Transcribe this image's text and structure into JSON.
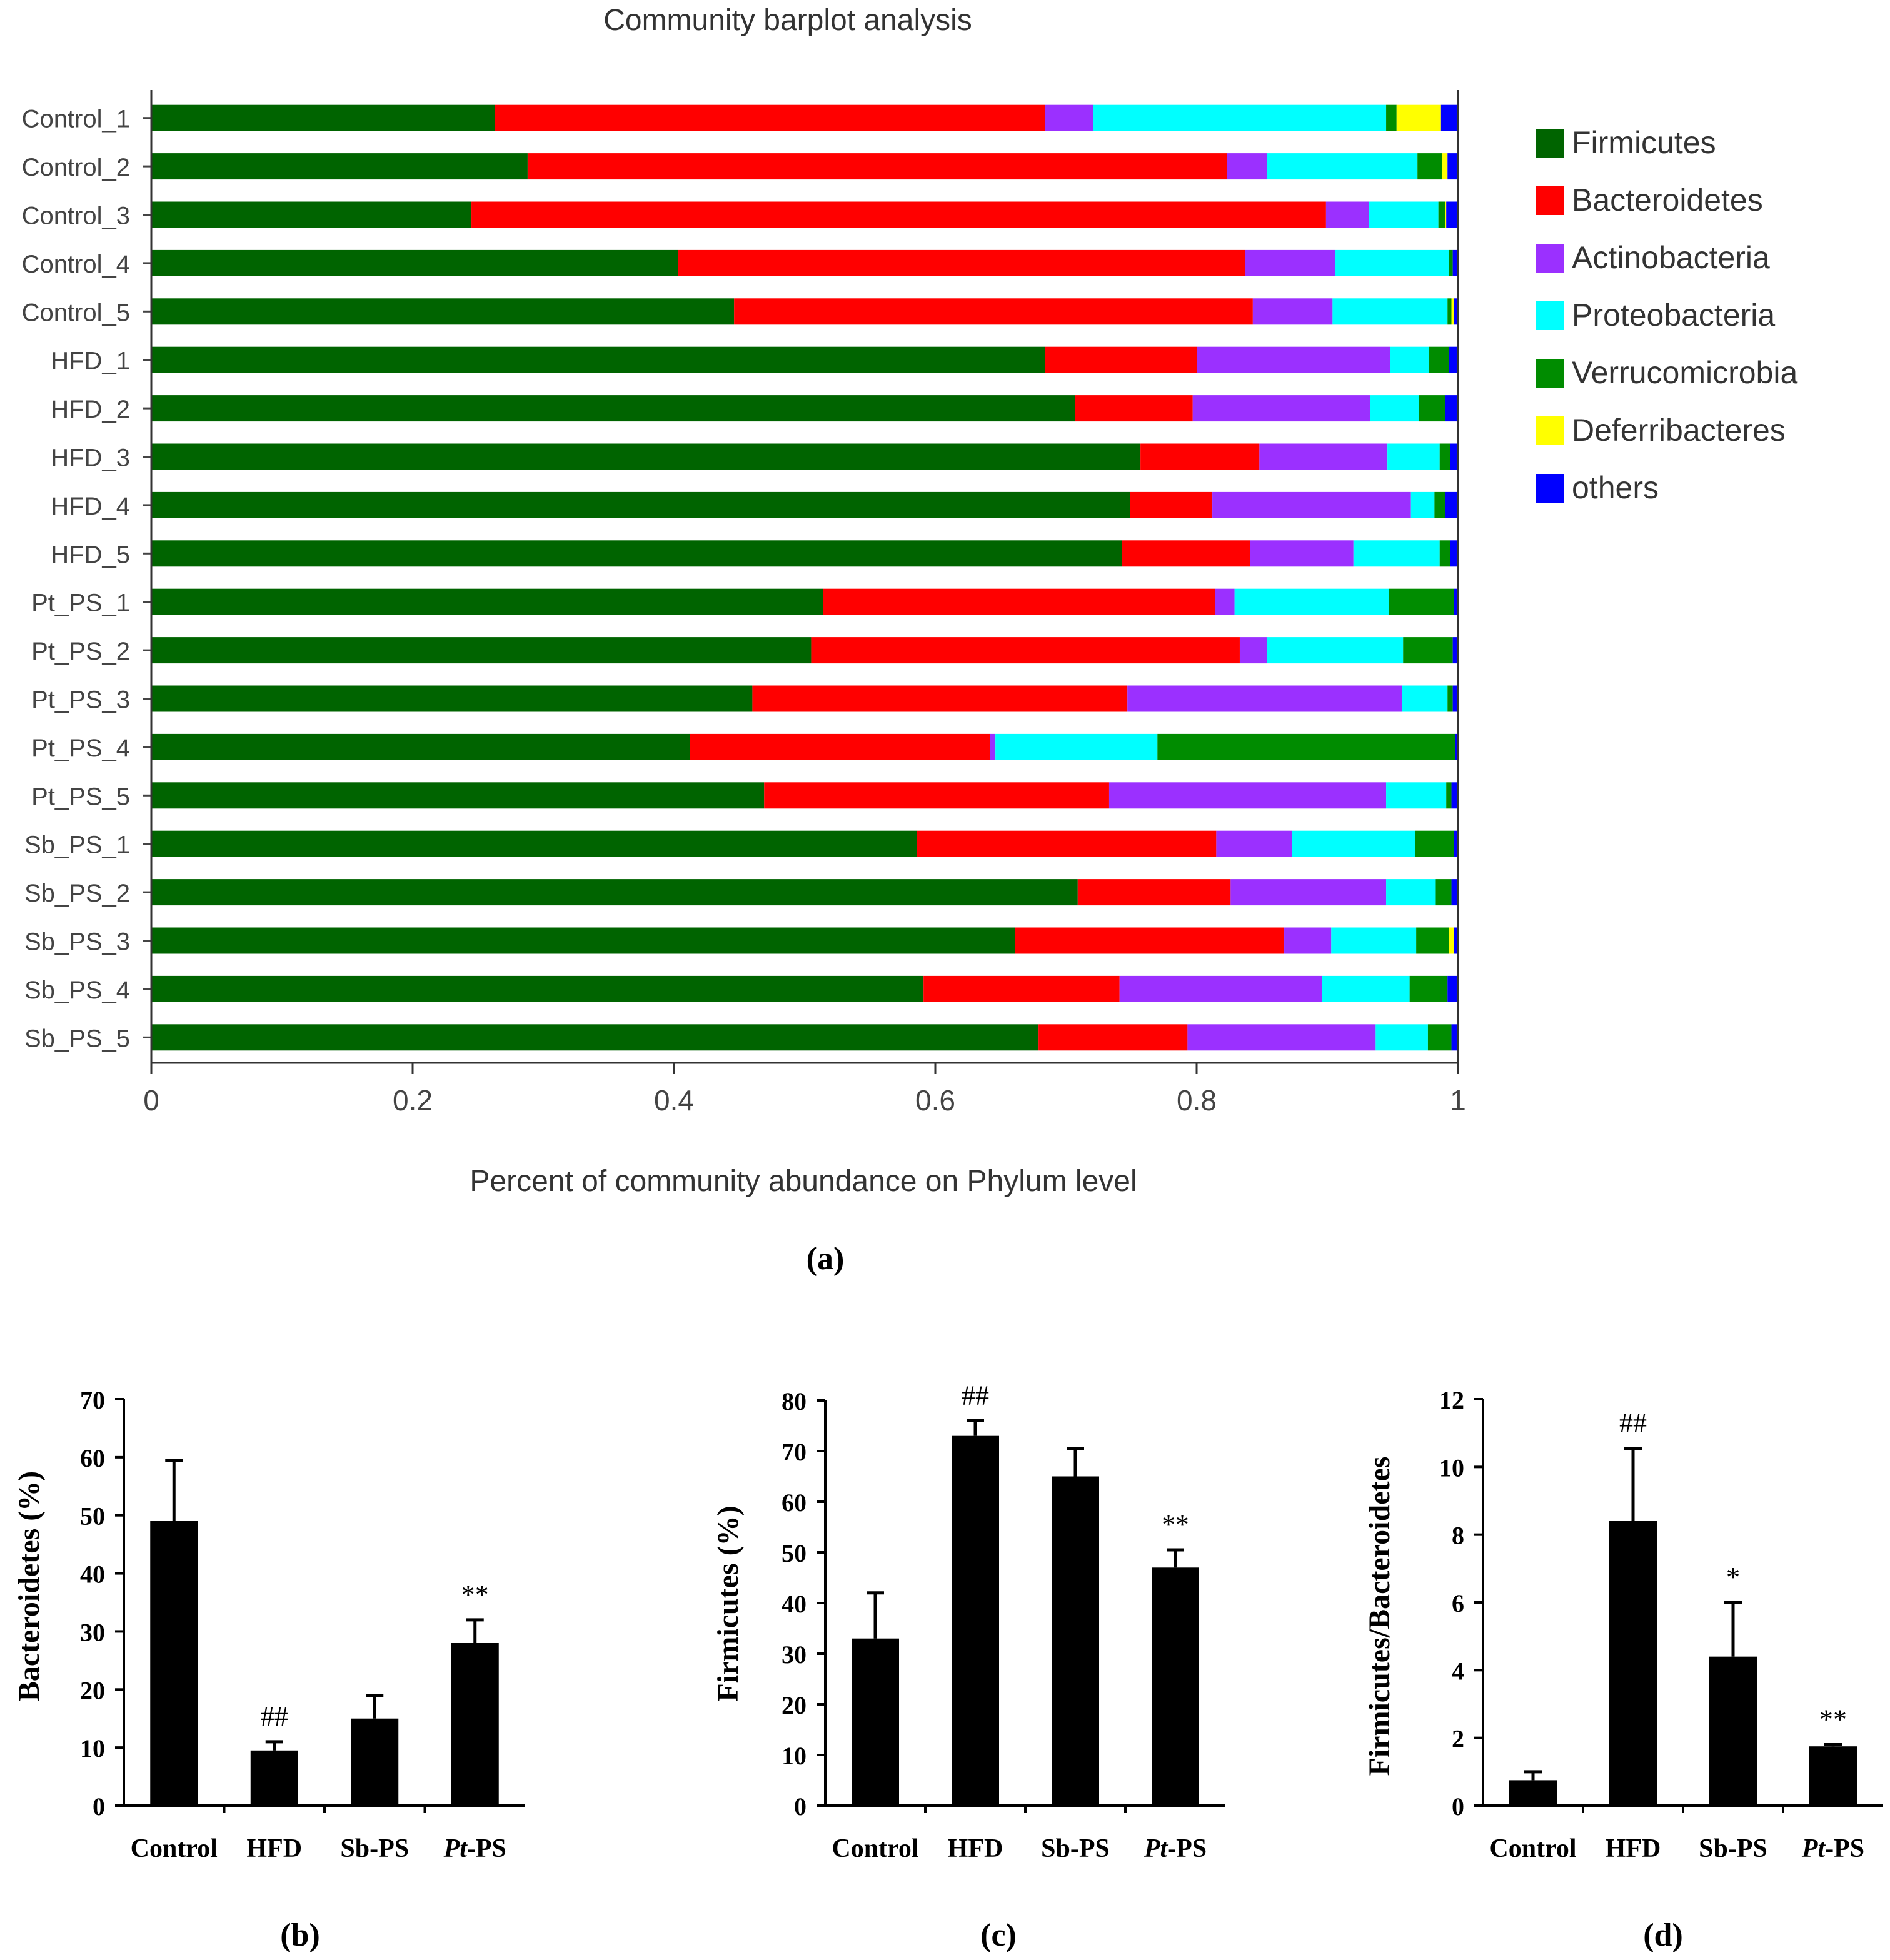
{
  "chart_data": [
    {
      "type": "bar",
      "orientation": "horizontal",
      "stacked": true,
      "panel_label": "(a)",
      "title": "Community barplot analysis",
      "xlabel": "Percent of community abundance on Phylum level",
      "ylabel": "",
      "xlim": [
        0,
        1
      ],
      "xticks": [
        0,
        0.2,
        0.4,
        0.6,
        0.8,
        1
      ],
      "xtick_labels": [
        "0",
        "0.2",
        "0.4",
        "0.6",
        "0.8",
        "1"
      ],
      "legend_position": "right",
      "categories": [
        "Control_1",
        "Control_2",
        "Control_3",
        "Control_4",
        "Control_5",
        "HFD_1",
        "HFD_2",
        "HFD_3",
        "HFD_4",
        "HFD_5",
        "Pt_PS_1",
        "Pt_PS_2",
        "Pt_PS_3",
        "Pt_PS_4",
        "Pt_PS_5",
        "Sb_PS_1",
        "Sb_PS_2",
        "Sb_PS_3",
        "Sb_PS_4",
        "Sb_PS_5"
      ],
      "series": [
        {
          "name": "Firmicutes",
          "color": "#006400",
          "values": [
            0.263,
            0.288,
            0.245,
            0.403,
            0.446,
            0.684,
            0.707,
            0.757,
            0.749,
            0.743,
            0.514,
            0.505,
            0.46,
            0.412,
            0.469,
            0.586,
            0.709,
            0.661,
            0.591,
            0.679
          ]
        },
        {
          "name": "Bacteroidetes",
          "color": "#ff0000",
          "values": [
            0.421,
            0.535,
            0.654,
            0.434,
            0.397,
            0.116,
            0.09,
            0.091,
            0.063,
            0.098,
            0.3,
            0.328,
            0.287,
            0.23,
            0.264,
            0.229,
            0.117,
            0.206,
            0.15,
            0.114
          ]
        },
        {
          "name": "Actinobacteria",
          "color": "#9b30ff",
          "values": [
            0.037,
            0.031,
            0.033,
            0.069,
            0.061,
            0.148,
            0.136,
            0.098,
            0.152,
            0.079,
            0.015,
            0.021,
            0.21,
            0.004,
            0.212,
            0.058,
            0.119,
            0.036,
            0.155,
            0.144
          ]
        },
        {
          "name": "Proteobacteria",
          "color": "#00ffff",
          "values": [
            0.224,
            0.115,
            0.053,
            0.087,
            0.088,
            0.03,
            0.037,
            0.04,
            0.018,
            0.066,
            0.118,
            0.104,
            0.035,
            0.124,
            0.046,
            0.094,
            0.038,
            0.065,
            0.067,
            0.04
          ]
        },
        {
          "name": "Verrucomicrobia",
          "color": "#008c00",
          "values": [
            0.008,
            0.019,
            0.005,
            0.003,
            0.003,
            0.015,
            0.02,
            0.008,
            0.008,
            0.008,
            0.05,
            0.038,
            0.004,
            0.228,
            0.004,
            0.03,
            0.012,
            0.025,
            0.029,
            0.018
          ]
        },
        {
          "name": "Deferribacteres",
          "color": "#ffff00",
          "values": [
            0.034,
            0.004,
            0.001,
            0.0,
            0.002,
            0.0,
            0.0,
            0.0,
            0.0,
            0.0,
            0.0,
            0.0,
            0.0,
            0.0,
            0.0,
            0.0,
            0.0,
            0.004,
            0.0,
            0.0
          ]
        },
        {
          "name": "others",
          "color": "#0000ff",
          "values": [
            0.013,
            0.008,
            0.009,
            0.004,
            0.003,
            0.007,
            0.01,
            0.006,
            0.01,
            0.006,
            0.003,
            0.004,
            0.004,
            0.002,
            0.005,
            0.003,
            0.005,
            0.003,
            0.008,
            0.005
          ]
        }
      ]
    },
    {
      "type": "bar",
      "panel_label": "(b)",
      "title": "",
      "xlabel": "",
      "ylabel": "Bacteroidetes (%)",
      "ylim": [
        0,
        70
      ],
      "yticks": [
        0,
        10,
        20,
        30,
        40,
        50,
        60,
        70
      ],
      "categories": [
        "Control",
        "HFD",
        "Sb-PS",
        "Pt-PS"
      ],
      "values": [
        49,
        9.5,
        15,
        28
      ],
      "errors": [
        10.5,
        1.5,
        4,
        4
      ],
      "annotations": [
        "",
        "##",
        "",
        "**"
      ]
    },
    {
      "type": "bar",
      "panel_label": "(c)",
      "title": "",
      "xlabel": "",
      "ylabel": "Firmicutes (%)",
      "ylim": [
        0,
        80
      ],
      "yticks": [
        0,
        10,
        20,
        30,
        40,
        50,
        60,
        70,
        80
      ],
      "categories": [
        "Control",
        "HFD",
        "Sb-PS",
        "Pt-PS"
      ],
      "values": [
        33,
        73,
        65,
        47
      ],
      "errors": [
        9,
        3,
        5.5,
        3.5
      ],
      "annotations": [
        "",
        "##",
        "",
        "**"
      ]
    },
    {
      "type": "bar",
      "panel_label": "(d)",
      "title": "",
      "xlabel": "",
      "ylabel": "Firmicutes/Bacteroidetes",
      "ylim": [
        0,
        12
      ],
      "yticks": [
        0,
        2,
        4,
        6,
        8,
        10,
        12
      ],
      "categories": [
        "Control",
        "HFD",
        "Sb-PS",
        "Pt-PS"
      ],
      "values": [
        0.75,
        8.4,
        4.4,
        1.75
      ],
      "errors": [
        0.25,
        2.15,
        1.6,
        0.05
      ],
      "annotations": [
        "",
        "##",
        "*",
        "**"
      ]
    }
  ]
}
